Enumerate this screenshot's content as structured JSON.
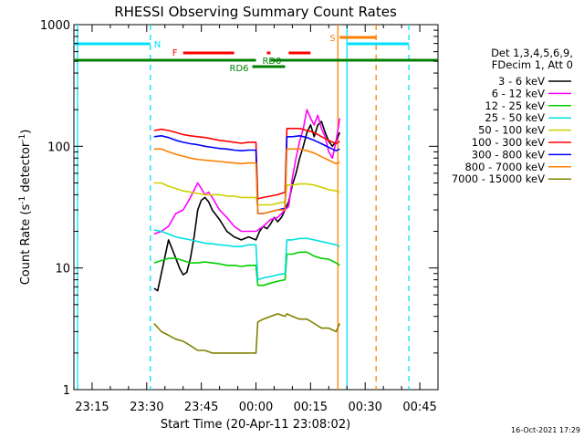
{
  "chart_data": {
    "type": "line",
    "title": "RHESSI Observing Summary Count Rates",
    "xlabel": "Start Time (20-Apr-11 23:08:02)",
    "ylabel_main": "Count Rate (s",
    "ylabel_sup1": "-1",
    "ylabel_mid": " detector",
    "ylabel_sup2": "-1",
    "ylabel_end": ")",
    "y_scale": "log",
    "ylim": [
      1,
      1000
    ],
    "xlim_minutes": [
      -50,
      50
    ],
    "x_tick_labels": [
      "23:15",
      "23:30",
      "23:45",
      "00:00",
      "00:15",
      "00:30",
      "00:45"
    ],
    "x_tick_minutes": [
      -45,
      -30,
      -15,
      0,
      15,
      30,
      45
    ],
    "y_tick_labels": [
      "1",
      "10",
      "100",
      "1000"
    ],
    "y_tick_values": [
      1,
      10,
      100,
      1000
    ],
    "grid": false,
    "legend_position": "right",
    "legend_header": [
      "Det 1,3,4,5,6,9,",
      "FDecim 1, Att 0"
    ],
    "series": [
      {
        "name": "3 - 6 keV",
        "color": "#000000",
        "points": [
          [
            -28,
            6.8
          ],
          [
            -27,
            6.5
          ],
          [
            -26,
            9
          ],
          [
            -24,
            17
          ],
          [
            -22,
            12
          ],
          [
            -21,
            10
          ],
          [
            -20,
            8.8
          ],
          [
            -19,
            9.2
          ],
          [
            -18,
            12
          ],
          [
            -17,
            18
          ],
          [
            -16,
            30
          ],
          [
            -15,
            36
          ],
          [
            -14,
            38
          ],
          [
            -13,
            35
          ],
          [
            -12,
            30
          ],
          [
            -10,
            25
          ],
          [
            -8,
            20
          ],
          [
            -6,
            18
          ],
          [
            -4,
            17
          ],
          [
            -2,
            18
          ],
          [
            0,
            17
          ],
          [
            1,
            20
          ],
          [
            2,
            22
          ],
          [
            3,
            21
          ],
          [
            4,
            23
          ],
          [
            5,
            26
          ],
          [
            6,
            24
          ],
          [
            7,
            26
          ],
          [
            8,
            30
          ],
          [
            9,
            35
          ],
          [
            10,
            48
          ],
          [
            11,
            60
          ],
          [
            12,
            80
          ],
          [
            13,
            100
          ],
          [
            14,
            130
          ],
          [
            15,
            150
          ],
          [
            16,
            120
          ],
          [
            17,
            150
          ],
          [
            18,
            160
          ],
          [
            19,
            130
          ],
          [
            20,
            110
          ],
          [
            21,
            100
          ],
          [
            22,
            110
          ],
          [
            23,
            130
          ]
        ]
      },
      {
        "name": "6 - 12 keV",
        "color": "#ff00ff",
        "points": [
          [
            -28,
            19
          ],
          [
            -26,
            20
          ],
          [
            -24,
            22
          ],
          [
            -22,
            28
          ],
          [
            -20,
            30
          ],
          [
            -18,
            38
          ],
          [
            -16,
            50
          ],
          [
            -15,
            45
          ],
          [
            -14,
            40
          ],
          [
            -13,
            42
          ],
          [
            -12,
            38
          ],
          [
            -10,
            30
          ],
          [
            -8,
            26
          ],
          [
            -6,
            22
          ],
          [
            -4,
            20
          ],
          [
            -2,
            20
          ],
          [
            0,
            20
          ],
          [
            2,
            22
          ],
          [
            4,
            25
          ],
          [
            6,
            26
          ],
          [
            8,
            30
          ],
          [
            9,
            32
          ],
          [
            10,
            55
          ],
          [
            11,
            80
          ],
          [
            12,
            110
          ],
          [
            13,
            140
          ],
          [
            14,
            200
          ],
          [
            15,
            170
          ],
          [
            16,
            150
          ],
          [
            17,
            180
          ],
          [
            18,
            140
          ],
          [
            19,
            120
          ],
          [
            20,
            90
          ],
          [
            21,
            80
          ],
          [
            22,
            110
          ],
          [
            23,
            170
          ]
        ]
      },
      {
        "name": "12 - 25 keV",
        "color": "#00d000",
        "points": [
          [
            -28,
            11
          ],
          [
            -26,
            11.5
          ],
          [
            -24,
            12
          ],
          [
            -22,
            12
          ],
          [
            -20,
            11.5
          ],
          [
            -18,
            11
          ],
          [
            -16,
            11
          ],
          [
            -14,
            11.2
          ],
          [
            -12,
            11
          ],
          [
            -10,
            10.8
          ],
          [
            -8,
            10.5
          ],
          [
            -6,
            10.5
          ],
          [
            -4,
            10.3
          ],
          [
            -2,
            10.5
          ],
          [
            0,
            10.5
          ],
          [
            0.5,
            7.2
          ],
          [
            2,
            7.2
          ],
          [
            4,
            7.5
          ],
          [
            6,
            7.8
          ],
          [
            8,
            8
          ],
          [
            8.5,
            13
          ],
          [
            10,
            13
          ],
          [
            12,
            13.5
          ],
          [
            14,
            13.5
          ],
          [
            16,
            12.5
          ],
          [
            18,
            12
          ],
          [
            20,
            11.8
          ],
          [
            22,
            11
          ],
          [
            23,
            10.5
          ]
        ]
      },
      {
        "name": "25 - 50 keV",
        "color": "#00e0e0",
        "points": [
          [
            -28,
            20.5
          ],
          [
            -26,
            20
          ],
          [
            -24,
            19
          ],
          [
            -22,
            18
          ],
          [
            -20,
            17.5
          ],
          [
            -18,
            17
          ],
          [
            -16,
            16.5
          ],
          [
            -14,
            16
          ],
          [
            -12,
            15.8
          ],
          [
            -10,
            15.5
          ],
          [
            -8,
            15.3
          ],
          [
            -6,
            15
          ],
          [
            -4,
            15
          ],
          [
            -2,
            15.5
          ],
          [
            0,
            15.5
          ],
          [
            0.5,
            8
          ],
          [
            2,
            8.3
          ],
          [
            4,
            8.5
          ],
          [
            6,
            8.8
          ],
          [
            8,
            9
          ],
          [
            8.5,
            17
          ],
          [
            10,
            17
          ],
          [
            12,
            17.5
          ],
          [
            14,
            17.5
          ],
          [
            16,
            17
          ],
          [
            18,
            16.5
          ],
          [
            20,
            16
          ],
          [
            22,
            15.5
          ],
          [
            23,
            15
          ]
        ]
      },
      {
        "name": "50 - 100 keV",
        "color": "#d0d000",
        "points": [
          [
            -28,
            50
          ],
          [
            -26,
            50
          ],
          [
            -24,
            47
          ],
          [
            -22,
            45
          ],
          [
            -20,
            43
          ],
          [
            -18,
            42
          ],
          [
            -16,
            41
          ],
          [
            -14,
            40
          ],
          [
            -12,
            40
          ],
          [
            -10,
            40
          ],
          [
            -8,
            39
          ],
          [
            -6,
            39
          ],
          [
            -4,
            38
          ],
          [
            -2,
            38
          ],
          [
            0,
            38
          ],
          [
            0.5,
            33
          ],
          [
            2,
            33
          ],
          [
            4,
            33
          ],
          [
            6,
            34
          ],
          [
            8,
            35
          ],
          [
            8.5,
            48
          ],
          [
            10,
            48
          ],
          [
            12,
            49
          ],
          [
            14,
            49
          ],
          [
            16,
            48
          ],
          [
            18,
            46
          ],
          [
            20,
            44
          ],
          [
            22,
            43
          ],
          [
            23,
            42
          ]
        ]
      },
      {
        "name": "100 - 300 keV",
        "color": "#ff0000",
        "points": [
          [
            -28,
            135
          ],
          [
            -26,
            138
          ],
          [
            -24,
            135
          ],
          [
            -22,
            130
          ],
          [
            -20,
            125
          ],
          [
            -18,
            122
          ],
          [
            -16,
            120
          ],
          [
            -14,
            118
          ],
          [
            -12,
            115
          ],
          [
            -10,
            112
          ],
          [
            -8,
            110
          ],
          [
            -6,
            108
          ],
          [
            -4,
            106
          ],
          [
            -2,
            108
          ],
          [
            0,
            108
          ],
          [
            0.5,
            37
          ],
          [
            2,
            38
          ],
          [
            4,
            39
          ],
          [
            6,
            40
          ],
          [
            8,
            42
          ],
          [
            8.5,
            140
          ],
          [
            10,
            140
          ],
          [
            12,
            140
          ],
          [
            14,
            135
          ],
          [
            16,
            130
          ],
          [
            18,
            120
          ],
          [
            20,
            112
          ],
          [
            22,
            105
          ],
          [
            23,
            110
          ]
        ]
      },
      {
        "name": "300 - 800 keV",
        "color": "#0000ff",
        "points": [
          [
            -28,
            120
          ],
          [
            -26,
            122
          ],
          [
            -24,
            118
          ],
          [
            -22,
            112
          ],
          [
            -20,
            108
          ],
          [
            -18,
            105
          ],
          [
            -16,
            103
          ],
          [
            -14,
            100
          ],
          [
            -12,
            98
          ],
          [
            -10,
            96
          ],
          [
            -8,
            95
          ],
          [
            -6,
            93
          ],
          [
            -4,
            92
          ],
          [
            -2,
            93
          ],
          [
            0,
            93
          ],
          [
            0.5,
            28
          ],
          [
            2,
            28
          ],
          [
            4,
            29
          ],
          [
            6,
            30
          ],
          [
            8,
            31
          ],
          [
            8.5,
            120
          ],
          [
            10,
            120
          ],
          [
            12,
            122
          ],
          [
            14,
            118
          ],
          [
            16,
            112
          ],
          [
            18,
            105
          ],
          [
            20,
            98
          ],
          [
            22,
            92
          ],
          [
            23,
            95
          ]
        ]
      },
      {
        "name": "800 - 7000 keV",
        "color": "#ff8000",
        "points": [
          [
            -28,
            95
          ],
          [
            -26,
            95
          ],
          [
            -24,
            90
          ],
          [
            -22,
            86
          ],
          [
            -20,
            83
          ],
          [
            -18,
            80
          ],
          [
            -16,
            78
          ],
          [
            -14,
            77
          ],
          [
            -12,
            76
          ],
          [
            -10,
            75
          ],
          [
            -8,
            74
          ],
          [
            -6,
            73
          ],
          [
            -4,
            72
          ],
          [
            -2,
            73
          ],
          [
            0,
            73
          ],
          [
            0.5,
            28
          ],
          [
            2,
            28
          ],
          [
            4,
            29
          ],
          [
            6,
            30
          ],
          [
            8,
            30
          ],
          [
            8.5,
            95
          ],
          [
            10,
            95
          ],
          [
            12,
            95
          ],
          [
            14,
            92
          ],
          [
            16,
            88
          ],
          [
            18,
            82
          ],
          [
            20,
            77
          ],
          [
            22,
            72
          ],
          [
            23,
            74
          ]
        ]
      },
      {
        "name": "7000 - 15000 keV",
        "color": "#808000",
        "points": [
          [
            -28,
            3.5
          ],
          [
            -26,
            3
          ],
          [
            -24,
            2.8
          ],
          [
            -22,
            2.6
          ],
          [
            -20,
            2.5
          ],
          [
            -18,
            2.3
          ],
          [
            -16,
            2.1
          ],
          [
            -14,
            2.1
          ],
          [
            -12,
            2.0
          ],
          [
            -10,
            2.0
          ],
          [
            -8,
            2.0
          ],
          [
            -6,
            2.0
          ],
          [
            -4,
            2.0
          ],
          [
            -2,
            2.0
          ],
          [
            0,
            2.0
          ],
          [
            0.5,
            3.6
          ],
          [
            2,
            3.8
          ],
          [
            4,
            4.0
          ],
          [
            6,
            4.2
          ],
          [
            8,
            4.0
          ],
          [
            8.5,
            4.2
          ],
          [
            10,
            4.0
          ],
          [
            12,
            3.8
          ],
          [
            14,
            3.8
          ],
          [
            16,
            3.5
          ],
          [
            18,
            3.2
          ],
          [
            20,
            3.2
          ],
          [
            22,
            3.0
          ],
          [
            23,
            3.5
          ]
        ]
      }
    ],
    "annotations": {
      "night": {
        "label": "N",
        "color": "#00e0ff"
      },
      "flare": {
        "label": "F",
        "color": "#ff0000"
      },
      "saa": {
        "label": "S",
        "color": "#ff8000"
      },
      "rd0": {
        "label": "RD0",
        "color": "#008000"
      },
      "rd6": {
        "label": "RD6",
        "color": "#008000"
      }
    }
  },
  "footer": {
    "timestamp": "16-Oct-2021 17:29"
  }
}
